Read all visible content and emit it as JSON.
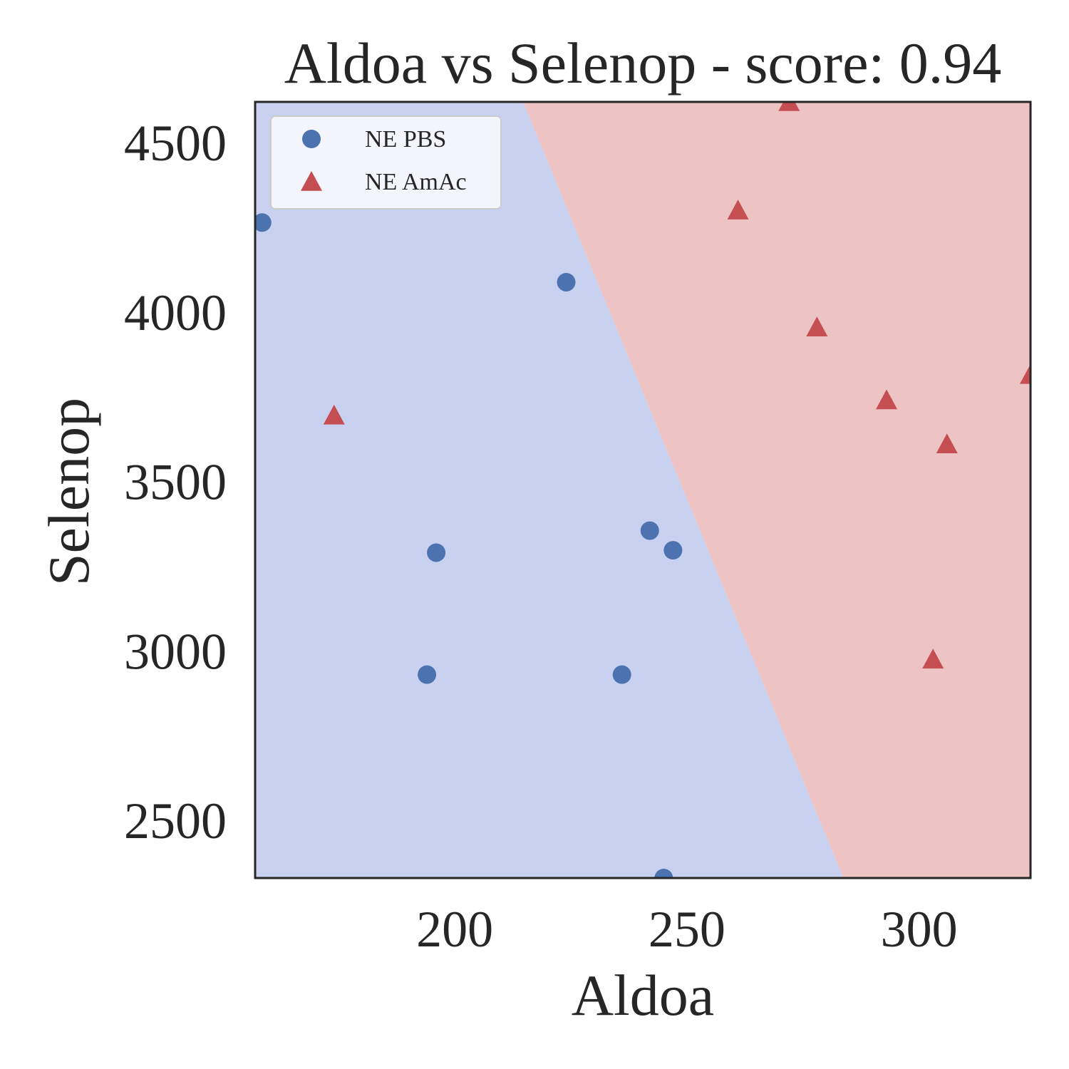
{
  "chart_data": {
    "type": "scatter",
    "title": "Aldoa vs Selenop - score: 0.94",
    "xlabel": "Aldoa",
    "ylabel": "Selenop",
    "xlim": [
      157,
      324
    ],
    "ylim": [
      2330,
      4620
    ],
    "xticks": [
      200,
      250,
      300
    ],
    "yticks": [
      2500,
      3000,
      3500,
      4000,
      4500
    ],
    "grid": false,
    "legend_position": "top-left",
    "decision_boundary": [
      [
        214.7,
        4620
      ],
      [
        283.7,
        2330
      ]
    ],
    "regions": [
      {
        "name": "NE PBS",
        "side": "left",
        "color": "#c9d1f1"
      },
      {
        "name": "NE AmAc",
        "side": "right",
        "color": "#eec3c3"
      }
    ],
    "series": [
      {
        "name": "NE PBS",
        "marker": "circle",
        "color": "#4c72b0",
        "points": [
          [
            158.5,
            4264
          ],
          [
            224,
            4088
          ],
          [
            196,
            3290
          ],
          [
            194,
            2930
          ],
          [
            242,
            3355
          ],
          [
            247,
            3297
          ],
          [
            236,
            2930
          ],
          [
            245,
            2330
          ]
        ]
      },
      {
        "name": "NE AmAc",
        "marker": "triangle",
        "color": "#c44e52",
        "points": [
          [
            174,
            3695
          ],
          [
            272,
            4620
          ],
          [
            261,
            4300
          ],
          [
            278,
            3955
          ],
          [
            293,
            3740
          ],
          [
            324,
            3815
          ],
          [
            306,
            3610
          ],
          [
            303,
            2975
          ]
        ]
      }
    ]
  }
}
